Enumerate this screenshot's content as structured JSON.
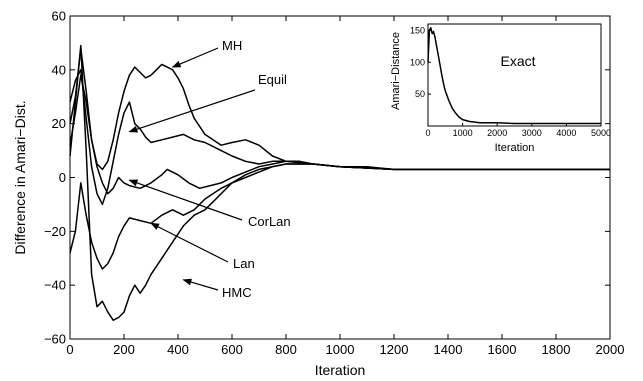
{
  "chart_data": [
    {
      "type": "line",
      "title": "",
      "xlabel": "Iteration",
      "ylabel": "Difference in Amari−Dist.",
      "xlim": [
        0,
        2000
      ],
      "ylim": [
        -60,
        60
      ],
      "xticks": [
        "0",
        "200",
        "400",
        "600",
        "800",
        "1000",
        "1200",
        "1400",
        "1600",
        "1800",
        "2000"
      ],
      "yticks": [
        "−60",
        "−40",
        "−20",
        "0",
        "20",
        "40",
        "60"
      ],
      "grid": false,
      "series": [
        {
          "name": "MH",
          "x": [
            0,
            20,
            40,
            60,
            80,
            100,
            120,
            140,
            160,
            180,
            200,
            220,
            240,
            260,
            280,
            300,
            320,
            340,
            360,
            380,
            400,
            420,
            440,
            460,
            500,
            560,
            600,
            650,
            700,
            750,
            800,
            900,
            1000,
            1100,
            1200,
            1400,
            1600,
            1800,
            2000
          ],
          "y": [
            12,
            24,
            38,
            28,
            14,
            5,
            3,
            6,
            14,
            24,
            32,
            38,
            41,
            39,
            37,
            38,
            40,
            42,
            41,
            40,
            37,
            33,
            27,
            22,
            16,
            12,
            13,
            14,
            12,
            8,
            6,
            5,
            4,
            4,
            3,
            3,
            3,
            3,
            3
          ]
        },
        {
          "name": "Equil",
          "x": [
            0,
            20,
            40,
            60,
            80,
            100,
            120,
            140,
            160,
            180,
            200,
            220,
            240,
            260,
            280,
            300,
            340,
            380,
            420,
            460,
            500,
            560,
            600,
            650,
            700,
            750,
            800,
            900,
            1000,
            1200,
            1400,
            1600,
            1800,
            2000
          ],
          "y": [
            28,
            36,
            40,
            22,
            4,
            -6,
            -10,
            -4,
            6,
            16,
            24,
            28,
            20,
            18,
            15,
            13,
            14,
            15,
            16,
            14,
            13,
            10,
            8,
            6,
            5,
            6,
            6,
            5,
            4,
            3,
            3,
            3,
            3,
            3
          ]
        },
        {
          "name": "CorLan",
          "x": [
            0,
            20,
            40,
            60,
            80,
            100,
            120,
            140,
            160,
            180,
            200,
            220,
            260,
            300,
            340,
            360,
            400,
            440,
            480,
            520,
            560,
            600,
            650,
            700,
            750,
            800,
            850,
            900,
            1000,
            1200,
            1400,
            1600,
            1800,
            2000
          ],
          "y": [
            20,
            30,
            48,
            32,
            14,
            4,
            -2,
            -6,
            -4,
            0,
            -2,
            -3,
            -4,
            -2,
            1,
            3,
            1,
            -2,
            -4,
            -3,
            -2,
            0,
            2,
            4,
            5,
            6,
            6,
            5,
            4,
            3,
            3,
            3,
            3,
            3
          ]
        },
        {
          "name": "Lan",
          "x": [
            0,
            20,
            40,
            60,
            80,
            100,
            120,
            140,
            160,
            180,
            200,
            220,
            260,
            300,
            340,
            380,
            420,
            460,
            500,
            560,
            600,
            650,
            700,
            750,
            800,
            900,
            1000,
            1200,
            1400,
            1600,
            1800,
            2000
          ],
          "y": [
            -28,
            -20,
            -2,
            -14,
            -24,
            -30,
            -34,
            -32,
            -28,
            -22,
            -18,
            -15,
            -16,
            -17,
            -14,
            -12,
            -14,
            -12,
            -8,
            -4,
            -2,
            1,
            3,
            4,
            5,
            5,
            4,
            3,
            3,
            3,
            3,
            3
          ]
        },
        {
          "name": "HMC",
          "x": [
            0,
            20,
            40,
            60,
            80,
            100,
            120,
            140,
            160,
            180,
            200,
            220,
            240,
            260,
            280,
            300,
            340,
            380,
            420,
            460,
            500,
            560,
            600,
            650,
            700,
            750,
            800,
            900,
            1000,
            1200,
            1400,
            1600,
            1800,
            2000
          ],
          "y": [
            8,
            28,
            49,
            10,
            -36,
            -48,
            -46,
            -50,
            -53,
            -52,
            -50,
            -44,
            -40,
            -43,
            -40,
            -36,
            -30,
            -24,
            -18,
            -14,
            -12,
            -6,
            -2,
            0,
            2,
            4,
            5,
            5,
            4,
            3,
            3,
            3,
            3,
            3
          ]
        }
      ],
      "annotations": [
        {
          "text": "MH",
          "target_series": "MH"
        },
        {
          "text": "Equil",
          "target_series": "Equil"
        },
        {
          "text": "CorLan",
          "target_series": "CorLan"
        },
        {
          "text": "Lan",
          "target_series": "Lan"
        },
        {
          "text": "HMC",
          "target_series": "HMC"
        }
      ]
    },
    {
      "type": "line",
      "title": "Exact",
      "xlabel": "Iteration",
      "ylabel": "Amari−Distance",
      "xlim": [
        0,
        5000
      ],
      "ylim": [
        0,
        160
      ],
      "xticks": [
        "0",
        "1000",
        "2000",
        "3000",
        "4000",
        "5000"
      ],
      "yticks": [
        "50",
        "100",
        "150"
      ],
      "series": [
        {
          "name": "",
          "x": [
            0,
            40,
            80,
            120,
            160,
            200,
            250,
            300,
            350,
            400,
            450,
            500,
            600,
            700,
            800,
            900,
            1000,
            1200,
            1500,
            2000,
            2500,
            3000,
            3500,
            4000,
            4500,
            5000
          ],
          "y": [
            100,
            150,
            154,
            145,
            148,
            140,
            125,
            110,
            95,
            80,
            66,
            55,
            40,
            28,
            20,
            14,
            10,
            7,
            5,
            5,
            4,
            4,
            4,
            4,
            4,
            4
          ]
        }
      ]
    }
  ]
}
